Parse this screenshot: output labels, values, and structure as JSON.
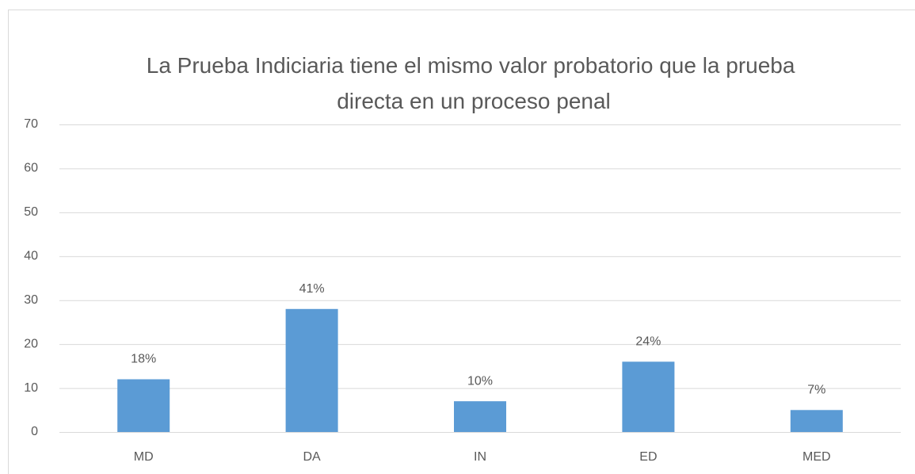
{
  "chart_data": {
    "type": "bar",
    "title": "La Prueba Indiciaria tiene el mismo valor probatorio que la prueba directa en un proceso penal",
    "categories": [
      "MD",
      "DA",
      "IN",
      "ED",
      "MED"
    ],
    "values": [
      12,
      28,
      7,
      16,
      5
    ],
    "value_labels": [
      "18%",
      "41%",
      "10%",
      "24%",
      "7%"
    ],
    "color": "#5b9bd5",
    "ylim": [
      0,
      70
    ],
    "yticks": [
      0,
      10,
      20,
      30,
      40,
      50,
      60,
      70
    ],
    "grid": true
  }
}
